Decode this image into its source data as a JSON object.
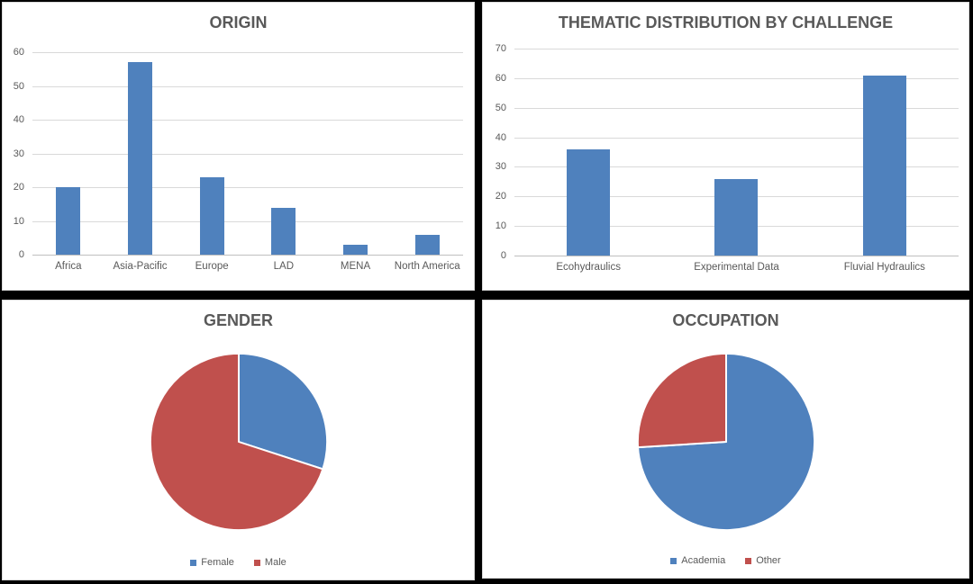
{
  "page": {
    "background": "#000000",
    "panel_background": "#FFFFFF"
  },
  "colors": {
    "bar_blue": "#4F81BD",
    "pie_red": "#C0504D",
    "text_gray": "#595959",
    "gridline": "#D9D9D9",
    "axis_line": "#BFBFBF",
    "panel_border": "#D9D9D9"
  },
  "chart_data": [
    {
      "id": "origin",
      "type": "bar",
      "title": "ORIGIN",
      "categories": [
        "Africa",
        "Asia-Pacific",
        "Europe",
        "LAD",
        "MENA",
        "North America"
      ],
      "values": [
        20,
        57,
        23,
        14,
        3,
        6
      ],
      "xlabel": "",
      "ylabel": "",
      "ylim": [
        0,
        60
      ],
      "ytick_step": 10,
      "grid": true,
      "legend_position": "none",
      "bar_color": "#4F81BD"
    },
    {
      "id": "thematic",
      "type": "bar",
      "title": "THEMATIC DISTRIBUTION BY CHALLENGE",
      "categories": [
        "Ecohydraulics",
        "Experimental Data",
        "Fluvial Hydraulics"
      ],
      "values": [
        36,
        26,
        61
      ],
      "xlabel": "",
      "ylabel": "",
      "ylim": [
        0,
        70
      ],
      "ytick_step": 10,
      "grid": true,
      "legend_position": "none",
      "bar_color": "#4F81BD"
    },
    {
      "id": "gender",
      "type": "pie",
      "title": "GENDER",
      "start_angle_deg": 0,
      "slices": [
        {
          "label": "Female",
          "percent": 30,
          "color": "#4F81BD"
        },
        {
          "label": "Male",
          "percent": 70,
          "color": "#C0504D"
        }
      ],
      "legend_position": "bottom"
    },
    {
      "id": "occupation",
      "type": "pie",
      "title": "OCCUPATION",
      "start_angle_deg": 0,
      "slices": [
        {
          "label": "Academia",
          "percent": 74,
          "color": "#4F81BD"
        },
        {
          "label": "Other",
          "percent": 26,
          "color": "#C0504D"
        }
      ],
      "legend_position": "bottom"
    }
  ]
}
